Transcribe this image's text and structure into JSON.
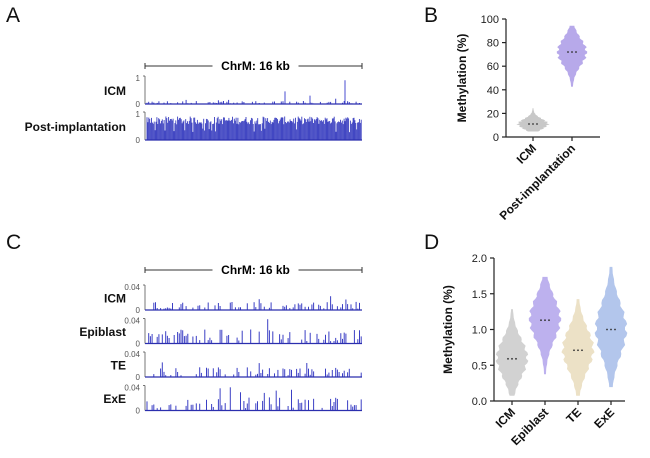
{
  "panels": {
    "A": "A",
    "B": "B",
    "C": "C",
    "D": "D"
  },
  "chart_data": [
    {
      "panel": "A",
      "type": "bar",
      "region_label": "ChrM: 16 kb",
      "tracks": [
        {
          "name": "ICM",
          "ymax_label": "1",
          "ymin_label": "0",
          "level": 0.06,
          "spikes": [
            0.45,
            0.3,
            0.85
          ]
        },
        {
          "name": "Post-implantation",
          "ymax_label": "1",
          "ymin_label": "0",
          "level": 0.8,
          "spikes": []
        }
      ]
    },
    {
      "panel": "B",
      "type": "violin",
      "ylabel": "Methylation (%)",
      "ylim": [
        0,
        100
      ],
      "yticks": [
        "0",
        "20",
        "40",
        "60",
        "80",
        "100"
      ],
      "categories": [
        "ICM",
        "Post-implantation"
      ],
      "series": [
        {
          "category": "ICM",
          "min": 5,
          "max": 24,
          "median": 11,
          "mode": 11,
          "color": "#c8c8c8"
        },
        {
          "category": "Post-implantation",
          "min": 43,
          "max": 94,
          "median": 72,
          "mode": 72,
          "color": "#b7a9ea"
        }
      ]
    },
    {
      "panel": "C",
      "type": "bar",
      "region_label": "ChrM: 16 kb",
      "tracks": [
        {
          "name": "ICM",
          "ymax_label": "0.04",
          "ymin_label": "0",
          "level": 0.18
        },
        {
          "name": "Epiblast",
          "ymax_label": "0.04",
          "ymin_label": "0",
          "level": 0.32
        },
        {
          "name": "TE",
          "ymax_label": "0.04",
          "ymin_label": "0",
          "level": 0.22
        },
        {
          "name": "ExE",
          "ymax_label": "0.04",
          "ymin_label": "0",
          "level": 0.3
        }
      ]
    },
    {
      "panel": "D",
      "type": "violin",
      "ylabel": "Methylation (%)",
      "ylim": [
        0,
        2.0
      ],
      "yticks": [
        "0.0",
        "0.5",
        "1.0",
        "1.5",
        "2.0"
      ],
      "categories": [
        "ICM",
        "Epiblast",
        "TE",
        "ExE"
      ],
      "series": [
        {
          "category": "ICM",
          "min": 0.08,
          "max": 1.28,
          "median": 0.59,
          "mode": 0.6,
          "color": "#d2d2d2"
        },
        {
          "category": "Epiblast",
          "min": 0.38,
          "max": 1.73,
          "median": 1.13,
          "mode": 1.15,
          "color": "#bdb1ee"
        },
        {
          "category": "TE",
          "min": 0.08,
          "max": 1.42,
          "median": 0.71,
          "mode": 0.72,
          "color": "#ece1c6"
        },
        {
          "category": "ExE",
          "min": 0.2,
          "max": 1.87,
          "median": 1.0,
          "mode": 1.0,
          "color": "#b3c6ec"
        }
      ]
    }
  ]
}
